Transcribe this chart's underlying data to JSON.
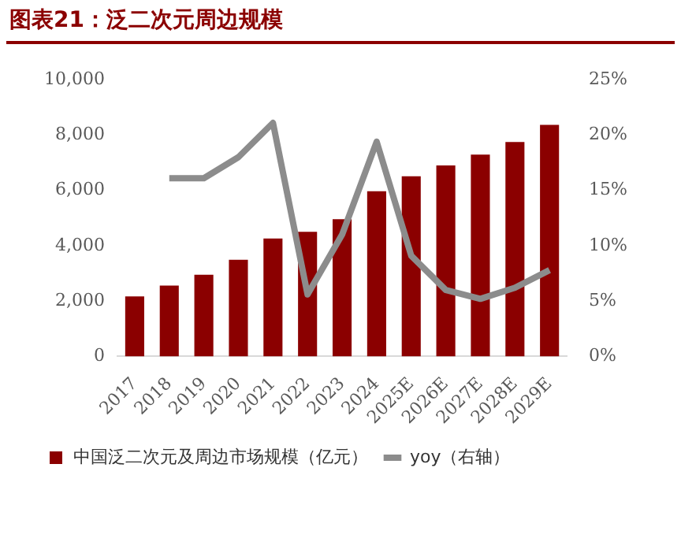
{
  "chart_data": {
    "type": "bar",
    "title": "图表21：泛二次元周边规模",
    "categories": [
      "2017",
      "2018",
      "2019",
      "2020",
      "2021",
      "2022",
      "2023",
      "2024",
      "2025E",
      "2026E",
      "2027E",
      "2028E",
      "2029E"
    ],
    "series": [
      {
        "name": "中国泛二次元及周边市场规模（亿元）",
        "color": "#8b0000",
        "values": [
          2170,
          2560,
          2950,
          3490,
          4260,
          4500,
          4960,
          5970,
          6510,
          6900,
          7290,
          7750,
          8370
        ]
      },
      {
        "name": "yoy（右轴）",
        "type": "line",
        "axis": "y2",
        "color": "#8c8c8c",
        "values": [
          null,
          16.1,
          16.1,
          18.0,
          21.1,
          5.6,
          11.0,
          19.4,
          9.1,
          6.0,
          5.2,
          6.2,
          7.8
        ]
      }
    ],
    "ylim": [
      0,
      10000
    ],
    "yticks": [
      0,
      {
        "value": 2000,
        "label": "2,000"
      },
      {
        "value": 4000,
        "label": "4,000"
      },
      {
        "value": 6000,
        "label": "6,000"
      },
      {
        "value": 8000,
        "label": "8,000"
      },
      {
        "value": 10000,
        "label": "10,000"
      }
    ],
    "y2lim": [
      0,
      25
    ],
    "y2ticks": [
      {
        "value": 0,
        "label": "0%"
      },
      {
        "value": 5,
        "label": "5%"
      },
      {
        "value": 10,
        "label": "10%"
      },
      {
        "value": 15,
        "label": "15%"
      },
      {
        "value": 20,
        "label": "20%"
      },
      {
        "value": 25,
        "label": "25%"
      }
    ],
    "grid": false,
    "legend": "bottom left",
    "marker": "none"
  }
}
